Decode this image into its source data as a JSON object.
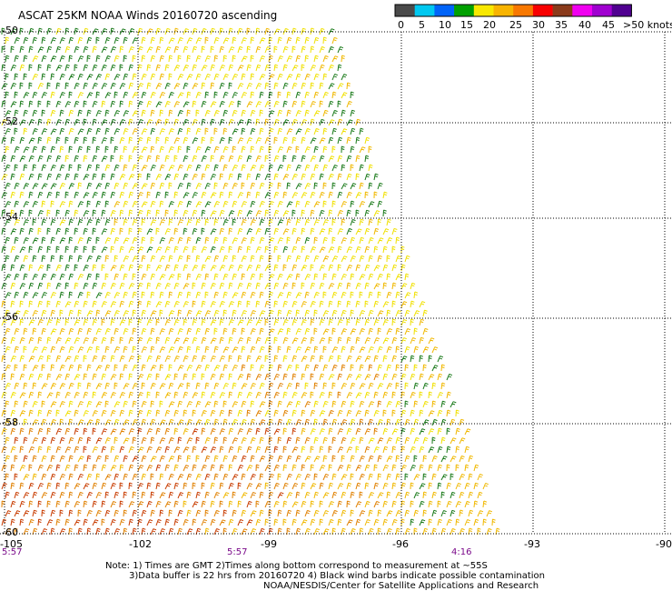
{
  "title": "ASCAT 25KM NOAA Winds 20160720 ascending",
  "legend": {
    "ticks": [
      "0",
      "5",
      "10",
      "15",
      "20",
      "25",
      "30",
      "35",
      "40",
      "45",
      ">50 knots"
    ],
    "colors": [
      "#4a4a4a",
      "#00c8f0",
      "#0064f8",
      "#00a000",
      "#f8e800",
      "#f8b400",
      "#f87800",
      "#f80000",
      "#8a3a1a",
      "#f000f0",
      "#a000d0",
      "#500090"
    ]
  },
  "axes": {
    "lat_labels": [
      "-50",
      "-52",
      "-54",
      "-56",
      "-58",
      "-60"
    ],
    "lon_labels": [
      "-105",
      "-102",
      "-99",
      "-96",
      "-93",
      "-90"
    ]
  },
  "times": [
    "5:57",
    "5:57",
    "4:16"
  ],
  "notes": {
    "line1": "Note: 1) Times are GMT 2)Times along bottom correspond to measurement at ~55S",
    "line2": "3)Data buffer is 22 hrs from 20160720 4) Black wind barbs indicate possible contamination",
    "line3": "NOAA/NESDIS/Center for Satellite Applications and Research"
  },
  "wind_colors": {
    "green": "#1a7a1a",
    "yellow": "#f0e000",
    "gold": "#f0b800",
    "orange": "#e08000",
    "red": "#c83c00"
  }
}
